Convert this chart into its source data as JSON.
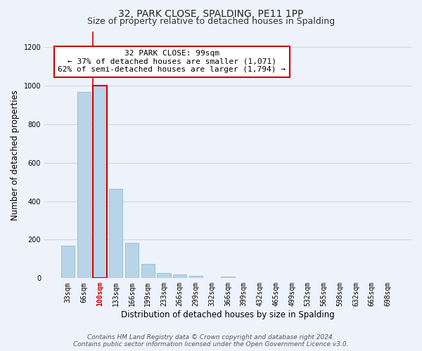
{
  "title": "32, PARK CLOSE, SPALDING, PE11 1PP",
  "subtitle": "Size of property relative to detached houses in Spalding",
  "xlabel": "Distribution of detached houses by size in Spalding",
  "ylabel": "Number of detached properties",
  "bar_labels": [
    "33sqm",
    "66sqm",
    "100sqm",
    "133sqm",
    "166sqm",
    "199sqm",
    "233sqm",
    "266sqm",
    "299sqm",
    "332sqm",
    "366sqm",
    "399sqm",
    "432sqm",
    "465sqm",
    "499sqm",
    "532sqm",
    "565sqm",
    "598sqm",
    "632sqm",
    "665sqm",
    "698sqm"
  ],
  "bar_heights": [
    170,
    965,
    1000,
    465,
    185,
    75,
    25,
    18,
    13,
    0,
    10,
    0,
    0,
    0,
    0,
    0,
    0,
    0,
    0,
    0,
    0
  ],
  "bar_color": "#b8d4e8",
  "bar_edge_color": "#8ab0cc",
  "highlight_bar_index": 2,
  "highlight_color": "#cc0000",
  "annotation_title": "32 PARK CLOSE: 99sqm",
  "annotation_line1": "← 37% of detached houses are smaller (1,071)",
  "annotation_line2": "62% of semi-detached houses are larger (1,794) →",
  "annotation_box_color": "#ffffff",
  "annotation_border_color": "#cc0000",
  "ylim_max": 1280,
  "yticks": [
    0,
    200,
    400,
    600,
    800,
    1000,
    1200
  ],
  "footer_line1": "Contains HM Land Registry data © Crown copyright and database right 2024.",
  "footer_line2": "Contains public sector information licensed under the Open Government Licence v3.0.",
  "bg_color": "#eef2fa",
  "grid_color": "#d0d8e8",
  "title_fontsize": 10,
  "subtitle_fontsize": 9,
  "axis_label_fontsize": 8.5,
  "tick_fontsize": 7,
  "annotation_fontsize": 8,
  "footer_fontsize": 6.5
}
